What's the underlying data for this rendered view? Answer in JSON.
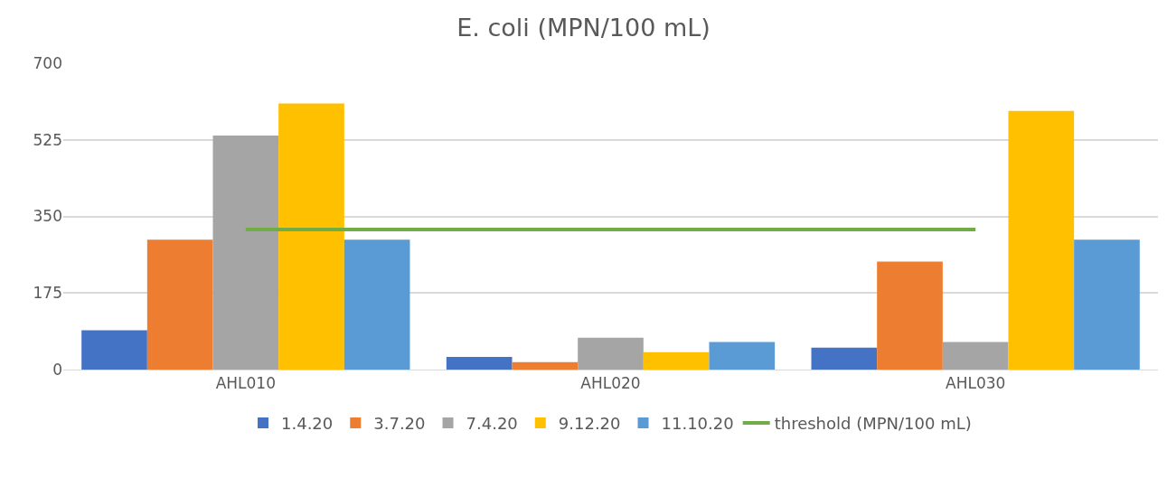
{
  "chart_data": {
    "type": "bar",
    "title": "E. coli (MPN/100 mL)",
    "categories": [
      "AHL010",
      "AHL020",
      "AHL030"
    ],
    "series": [
      {
        "name": "1.4.20",
        "color": "#4472c4",
        "values": [
          90,
          29,
          50
        ]
      },
      {
        "name": "3.7.20",
        "color": "#ed7d31",
        "values": [
          297,
          17,
          247
        ]
      },
      {
        "name": "7.4.20",
        "color": "#a5a5a5",
        "values": [
          535,
          73,
          63
        ]
      },
      {
        "name": "9.12.20",
        "color": "#ffc000",
        "values": [
          608,
          40,
          591
        ]
      },
      {
        "name": "11.10.20",
        "color": "#5b9bd5",
        "values": [
          297,
          63,
          297
        ]
      },
      {
        "name": "threshold (MPN/100 mL)",
        "type": "line",
        "color": "#70ad47",
        "values": [
          320,
          320,
          320
        ]
      }
    ],
    "ylim": [
      0,
      700
    ],
    "yticks": [
      0,
      175,
      350,
      525,
      700
    ],
    "grid": "y",
    "legend": "bottom",
    "marker": "none"
  }
}
